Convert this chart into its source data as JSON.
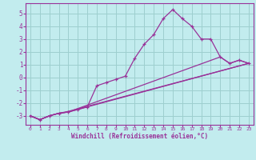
{
  "background_color": "#c2ecee",
  "grid_color": "#9dcfcf",
  "line_color": "#993399",
  "xlabel": "Windchill (Refroidissement éolien,°C)",
  "ylabel_ticks": [
    -3,
    -2,
    -1,
    0,
    1,
    2,
    3,
    4,
    5
  ],
  "xlim": [
    -0.5,
    23.5
  ],
  "ylim": [
    -3.7,
    5.8
  ],
  "xticks": [
    0,
    1,
    2,
    3,
    4,
    5,
    6,
    7,
    8,
    9,
    10,
    11,
    12,
    13,
    14,
    15,
    16,
    17,
    18,
    19,
    20,
    21,
    22,
    23
  ],
  "line1_x": [
    0,
    1,
    2,
    3,
    4,
    5,
    6,
    7,
    8,
    9,
    10,
    11,
    12,
    13,
    14,
    15,
    16,
    17,
    18,
    19,
    20,
    21,
    22,
    23
  ],
  "line1_y": [
    -3.0,
    -3.3,
    -3.0,
    -2.8,
    -2.7,
    -2.5,
    -2.3,
    -0.65,
    -0.4,
    -0.15,
    0.1,
    1.5,
    2.6,
    3.35,
    4.6,
    5.3,
    4.6,
    4.0,
    3.0,
    3.0,
    1.6,
    1.1,
    1.35,
    1.1
  ],
  "line2_x": [
    0,
    1,
    2,
    3,
    4,
    23
  ],
  "line2_y": [
    -3.0,
    -3.3,
    -3.0,
    -2.8,
    -2.7,
    1.1
  ],
  "line3_x": [
    0,
    1,
    2,
    3,
    4,
    20,
    21,
    22,
    23
  ],
  "line3_y": [
    -3.0,
    -3.3,
    -3.0,
    -2.8,
    -2.7,
    1.6,
    1.1,
    1.35,
    1.1
  ],
  "line4_x": [
    0,
    1,
    2,
    3,
    4,
    23
  ],
  "line4_y": [
    -3.0,
    -3.3,
    -3.0,
    -2.8,
    -2.65,
    1.1
  ]
}
